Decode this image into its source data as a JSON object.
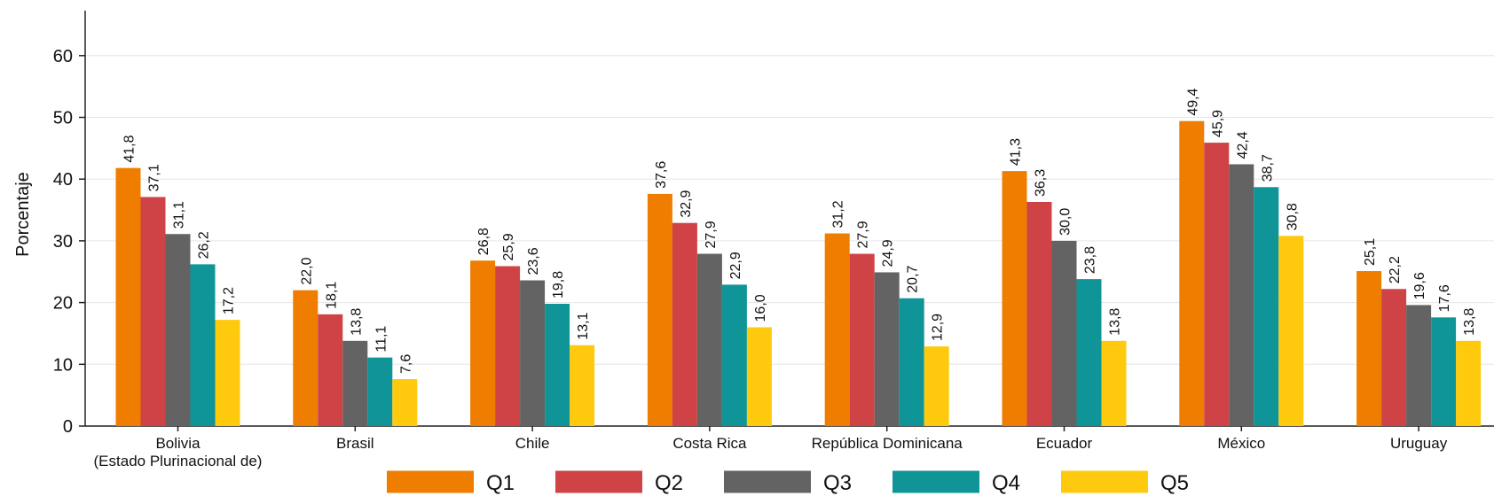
{
  "chart_data": {
    "type": "bar",
    "title": "",
    "xlabel": "",
    "ylabel": "Porcentaje",
    "ylim": [
      0,
      60
    ],
    "yticks": [
      "0",
      "10",
      "20",
      "30",
      "40",
      "50",
      "60"
    ],
    "grid": true,
    "legend_position": "bottom",
    "categories": [
      [
        "Bolivia",
        "(Estado Plurinacional de)"
      ],
      [
        "Brasil"
      ],
      [
        "Chile"
      ],
      [
        "Costa Rica"
      ],
      [
        "República Dominicana"
      ],
      [
        "Ecuador"
      ],
      [
        "México"
      ],
      [
        "Uruguay"
      ]
    ],
    "series": [
      {
        "name": "Q1",
        "color": "#ee7d00",
        "values": [
          41.8,
          22.0,
          26.8,
          37.6,
          31.2,
          41.3,
          49.4,
          25.1
        ],
        "labels": [
          "41,8",
          "22,0",
          "26,8",
          "37,6",
          "31,2",
          "41,3",
          "49,4",
          "25,1"
        ]
      },
      {
        "name": "Q2",
        "color": "#cf4346",
        "values": [
          37.1,
          18.1,
          25.9,
          32.9,
          27.9,
          36.3,
          45.9,
          22.2
        ],
        "labels": [
          "37,1",
          "18,1",
          "25,9",
          "32,9",
          "27,9",
          "36,3",
          "45,9",
          "22,2"
        ]
      },
      {
        "name": "Q3",
        "color": "#636363",
        "values": [
          31.1,
          13.8,
          23.6,
          27.9,
          24.9,
          30.0,
          42.4,
          19.6
        ],
        "labels": [
          "31,1",
          "13,8",
          "23,6",
          "27,9",
          "24,9",
          "30,0",
          "42,4",
          "19,6"
        ]
      },
      {
        "name": "Q4",
        "color": "#0f9598",
        "values": [
          26.2,
          11.1,
          19.8,
          22.9,
          20.7,
          23.8,
          38.7,
          17.6
        ],
        "labels": [
          "26,2",
          "11,1",
          "19,8",
          "22,9",
          "20,7",
          "23,8",
          "38,7",
          "17,6"
        ]
      },
      {
        "name": "Q5",
        "color": "#ffc90e",
        "values": [
          17.2,
          7.6,
          13.1,
          16.0,
          12.9,
          13.8,
          30.8,
          13.8
        ],
        "labels": [
          "17,2",
          "7,6",
          "13,1",
          "16,0",
          "12,9",
          "13,8",
          "30,8",
          "13,8"
        ]
      }
    ]
  }
}
